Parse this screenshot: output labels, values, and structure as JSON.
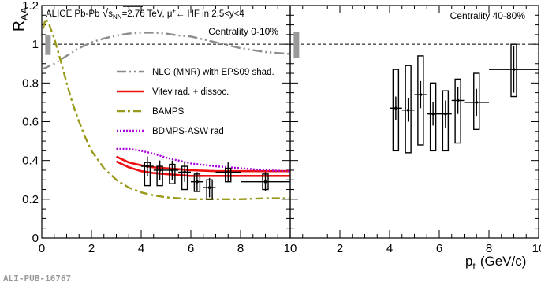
{
  "figure": {
    "y_axis_title": "R",
    "y_axis_title_sub": "AA",
    "x_axis_title": "p",
    "x_axis_title_sub": "t",
    "x_axis_unit": "(GeV/c)",
    "footer_id": "ALI-PUB-16767"
  },
  "chart_data": [
    {
      "type": "scatter",
      "panel": "left",
      "header": {
        "prefix": "ALICE Pb-Pb ",
        "sqrt": "√",
        "s": "s",
        "s_sub": "NN",
        "suffix": "=2.76 TeV, μ",
        "mu_sup": "±",
        "tail": "← HF in 2.5<y<4"
      },
      "centrality": "Centrality 0-10%",
      "xlim": [
        0,
        10
      ],
      "ylim": [
        0,
        1.2
      ],
      "x_ticks": [
        "0",
        "2",
        "4",
        "6",
        "8",
        "10"
      ],
      "y_ticks": [
        "0",
        "0.2",
        "0.4",
        "0.6",
        "0.8",
        "1",
        "1.2"
      ],
      "reference_line": 1,
      "normalization_box": {
        "x": 0.25,
        "low": 0.945,
        "high": 1.045
      },
      "points": [
        {
          "x": 4.25,
          "y": 0.37,
          "xerr": 0.25,
          "stat": 0.05,
          "sys_low": 0.27,
          "sys_high": 0.39
        },
        {
          "x": 4.75,
          "y": 0.35,
          "xerr": 0.25,
          "stat": 0.05,
          "sys_low": 0.27,
          "sys_high": 0.37
        },
        {
          "x": 5.25,
          "y": 0.35,
          "xerr": 0.25,
          "stat": 0.05,
          "sys_low": 0.28,
          "sys_high": 0.38
        },
        {
          "x": 5.75,
          "y": 0.34,
          "xerr": 0.25,
          "stat": 0.05,
          "sys_low": 0.25,
          "sys_high": 0.37
        },
        {
          "x": 6.25,
          "y": 0.29,
          "xerr": 0.25,
          "stat": 0.05,
          "sys_low": 0.24,
          "sys_high": 0.33
        },
        {
          "x": 6.75,
          "y": 0.26,
          "xerr": 0.25,
          "stat": 0.05,
          "sys_low": 0.2,
          "sys_high": 0.3
        },
        {
          "x": 7.5,
          "y": 0.34,
          "xerr": 0.5,
          "stat": 0.05,
          "sys_low": 0.29,
          "sys_high": 0.36
        },
        {
          "x": 9.0,
          "y": 0.29,
          "xerr": 1.0,
          "stat": 0.05,
          "sys_low": 0.25,
          "sys_high": 0.33
        }
      ],
      "legend": [
        {
          "label": "NLO (MNR) with EPS09 shad.",
          "color": "#8c8c8c",
          "dash": "12 4 2 4 2 4"
        },
        {
          "label": "Vitev rad. + dissoc.",
          "color": "#ee1111",
          "dash": ""
        },
        {
          "label": "BAMPS",
          "color": "#9a9a1a",
          "dash": "10 4 3 4"
        },
        {
          "label": "BDMPS-ASW rad",
          "color": "#aa00dd",
          "dash": "2 2"
        }
      ],
      "curves": [
        {
          "name": "NLO (MNR) with EPS09 shad.",
          "color": "#8c8c8c",
          "dash": "12 4 2 4 2 4",
          "width": 2.4,
          "x": [
            0,
            0.5,
            1,
            1.5,
            2,
            2.5,
            3,
            3.5,
            4,
            4.5,
            5,
            5.5,
            6,
            7,
            8,
            9,
            10
          ],
          "y": [
            0.87,
            0.9,
            0.94,
            0.98,
            1.01,
            1.03,
            1.045,
            1.055,
            1.06,
            1.06,
            1.055,
            1.045,
            1.04,
            1.01,
            0.98,
            0.96,
            0.95
          ]
        },
        {
          "name": "Vitev upper",
          "color": "#ee1111",
          "dash": "",
          "width": 2.6,
          "x": [
            3,
            3.5,
            4,
            4.5,
            5,
            5.5,
            6,
            7,
            8,
            9,
            10
          ],
          "y": [
            0.42,
            0.39,
            0.375,
            0.365,
            0.36,
            0.355,
            0.35,
            0.345,
            0.345,
            0.345,
            0.345
          ]
        },
        {
          "name": "Vitev lower",
          "color": "#ee1111",
          "dash": "",
          "width": 2.6,
          "x": [
            3,
            3.5,
            4,
            4.5,
            5,
            5.5,
            6,
            7,
            8,
            9,
            10
          ],
          "y": [
            0.395,
            0.365,
            0.345,
            0.335,
            0.33,
            0.325,
            0.32,
            0.32,
            0.32,
            0.32,
            0.32
          ]
        },
        {
          "name": "BAMPS",
          "color": "#9a9a1a",
          "dash": "10 4 3 4",
          "width": 2.4,
          "x": [
            0.05,
            0.15,
            0.3,
            0.5,
            0.75,
            1,
            1.25,
            1.5,
            1.75,
            2,
            2.5,
            3,
            3.5,
            4,
            4.5,
            5,
            5.5,
            6,
            7,
            8,
            9,
            10
          ],
          "y": [
            1.08,
            1.13,
            1.1,
            1.03,
            0.92,
            0.8,
            0.69,
            0.6,
            0.52,
            0.45,
            0.36,
            0.3,
            0.26,
            0.235,
            0.22,
            0.21,
            0.205,
            0.2,
            0.2,
            0.2,
            0.205,
            0.205
          ]
        },
        {
          "name": "BDMPS-ASW rad",
          "color": "#aa00dd",
          "dash": "2 2",
          "width": 2.4,
          "x": [
            3,
            3.5,
            4,
            4.5,
            5,
            5.5,
            6,
            7,
            8,
            9,
            10
          ],
          "y": [
            0.46,
            0.46,
            0.45,
            0.435,
            0.415,
            0.4,
            0.385,
            0.37,
            0.36,
            0.35,
            0.345
          ]
        }
      ]
    },
    {
      "type": "scatter",
      "panel": "right",
      "centrality": "Centrality 40-80%",
      "xlim": [
        0,
        10
      ],
      "ylim": [
        0,
        1.2
      ],
      "x_ticks": [
        "2",
        "4",
        "6",
        "8",
        "10"
      ],
      "reference_line": 1,
      "normalization_box": {
        "x": 0.25,
        "low": 0.93,
        "high": 1.065
      },
      "points": [
        {
          "x": 4.25,
          "y": 0.67,
          "xerr": 0.25,
          "stat": 0.06,
          "sys_low": 0.45,
          "sys_high": 0.87
        },
        {
          "x": 4.75,
          "y": 0.66,
          "xerr": 0.25,
          "stat": 0.06,
          "sys_low": 0.44,
          "sys_high": 0.89
        },
        {
          "x": 5.25,
          "y": 0.74,
          "xerr": 0.25,
          "stat": 0.07,
          "sys_low": 0.48,
          "sys_high": 0.94
        },
        {
          "x": 5.75,
          "y": 0.64,
          "xerr": 0.25,
          "stat": 0.06,
          "sys_low": 0.45,
          "sys_high": 0.8
        },
        {
          "x": 6.25,
          "y": 0.64,
          "xerr": 0.25,
          "stat": 0.07,
          "sys_low": 0.45,
          "sys_high": 0.76
        },
        {
          "x": 6.75,
          "y": 0.71,
          "xerr": 0.25,
          "stat": 0.07,
          "sys_low": 0.49,
          "sys_high": 0.82
        },
        {
          "x": 7.5,
          "y": 0.7,
          "xerr": 0.5,
          "stat": 0.07,
          "sys_low": 0.56,
          "sys_high": 0.85
        },
        {
          "x": 9.0,
          "y": 0.87,
          "xerr": 1.0,
          "stat": 0.12,
          "sys_low": 0.73,
          "sys_high": 1.0
        }
      ]
    }
  ]
}
